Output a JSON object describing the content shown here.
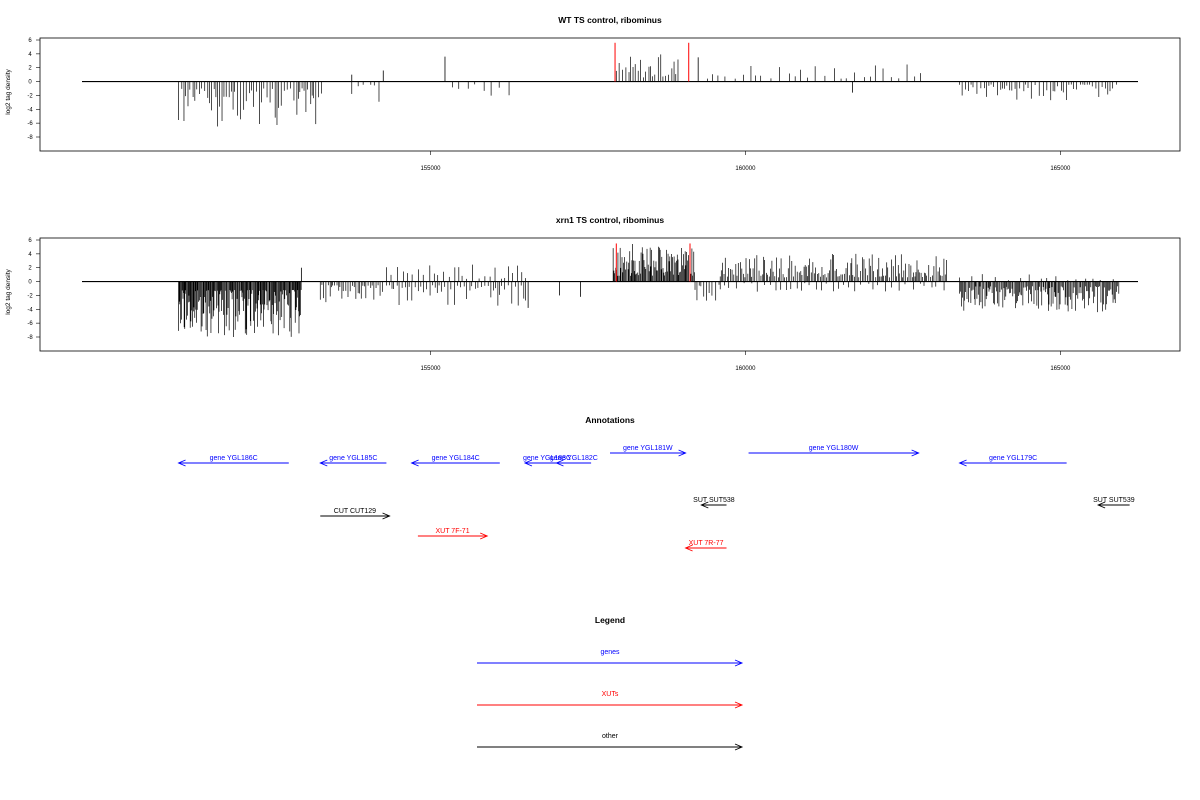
{
  "colors": {
    "blue": "#0000ff",
    "red": "#ff0000",
    "black": "#000000",
    "axis": "#333333"
  },
  "chart_data": [
    {
      "type": "bar",
      "title": "WT TS control, ribominus",
      "xlabel": "",
      "ylabel": "log2 tag density",
      "xlim": [
        148800,
        166900
      ],
      "ylim": [
        -8,
        6
      ],
      "yticks": [
        6,
        4,
        2,
        0,
        -2,
        -4,
        -6,
        -8
      ],
      "xticks": [
        155000,
        160000,
        165000
      ],
      "xtick_labels": [
        "155000",
        "160000",
        "165000"
      ],
      "signal_regions": [
        {
          "start": 151000,
          "end": 153300,
          "sign": -1,
          "max": 6.5,
          "step": 36
        },
        {
          "start": 153750,
          "end": 154250,
          "sign": -1,
          "max": 3.0,
          "step": 90
        },
        {
          "start": 155350,
          "end": 156300,
          "sign": -1,
          "max": 2.5,
          "step": 110
        },
        {
          "start": 157950,
          "end": 158950,
          "sign": 1,
          "max": 4.0,
          "step": 38
        },
        {
          "start": 159400,
          "end": 162800,
          "sign": 1,
          "max": 2.8,
          "step": 110
        },
        {
          "start": 163400,
          "end": 165900,
          "sign": -1,
          "max": 2.8,
          "step": 45
        }
      ],
      "spikes": [
        {
          "x": 154250,
          "y": 1.6
        },
        {
          "x": 155230,
          "y": 3.6
        },
        {
          "x": 153750,
          "y": 1.0
        },
        {
          "x": 161700,
          "y": -1.6
        },
        {
          "x": 159250,
          "y": 3.5
        }
      ],
      "red_spikes": [
        {
          "x": 157930,
          "y": 5.6
        },
        {
          "x": 159100,
          "y": 5.6
        }
      ]
    },
    {
      "type": "bar",
      "title": "xrn1 TS control, ribominus",
      "xlabel": "",
      "ylabel": "log2 tag density",
      "xlim": [
        148800,
        166900
      ],
      "ylim": [
        -8,
        6
      ],
      "yticks": [
        6,
        4,
        2,
        0,
        -2,
        -4,
        -6,
        -8
      ],
      "xticks": [
        155000,
        160000,
        165000
      ],
      "xtick_labels": [
        "155000",
        "160000",
        "165000"
      ],
      "signal_regions": [
        {
          "start": 151000,
          "end": 152950,
          "sign": -1,
          "max": 8.0,
          "step": 12
        },
        {
          "start": 153250,
          "end": 154250,
          "sign": -1,
          "max": 3.0,
          "step": 28
        },
        {
          "start": 154300,
          "end": 156550,
          "sign": -1,
          "max": 3.5,
          "step": 40
        },
        {
          "start": 154300,
          "end": 156550,
          "sign": 1,
          "max": 2.5,
          "step": 70
        },
        {
          "start": 157900,
          "end": 159200,
          "sign": 1,
          "max": 5.5,
          "step": 14
        },
        {
          "start": 159200,
          "end": 159600,
          "sign": -1,
          "max": 3.0,
          "step": 40
        },
        {
          "start": 159600,
          "end": 163200,
          "sign": 1,
          "max": 4.0,
          "step": 24
        },
        {
          "start": 159600,
          "end": 163200,
          "sign": -1,
          "max": 1.5,
          "step": 90
        },
        {
          "start": 163400,
          "end": 165950,
          "sign": -1,
          "max": 4.5,
          "step": 16
        },
        {
          "start": 163400,
          "end": 165950,
          "sign": 1,
          "max": 1.2,
          "step": 140
        }
      ],
      "spikes": [
        {
          "x": 152950,
          "y": 2.0
        },
        {
          "x": 156550,
          "y": -3.8
        },
        {
          "x": 157380,
          "y": -2.2
        },
        {
          "x": 157050,
          "y": -2.0
        }
      ],
      "red_spikes": [
        {
          "x": 157950,
          "y": 5.5
        },
        {
          "x": 159120,
          "y": 5.5
        }
      ]
    }
  ],
  "annotations": {
    "title": "Annotations",
    "items": [
      {
        "label": "gene YGL186C",
        "start": 151000,
        "end": 152750,
        "dir": "left",
        "row": 1,
        "color": "blue"
      },
      {
        "label": "gene YGL185C",
        "start": 153250,
        "end": 154300,
        "dir": "left",
        "row": 1,
        "color": "blue"
      },
      {
        "label": "gene YGL184C",
        "start": 154700,
        "end": 156100,
        "dir": "left",
        "row": 1,
        "color": "blue"
      },
      {
        "label": "gene YGL183C",
        "start": 156500,
        "end": 157200,
        "dir": "left",
        "row": 1,
        "color": "blue"
      },
      {
        "label": "gene YGL182C",
        "start": 157000,
        "end": 157550,
        "dir": "left",
        "row": 1,
        "color": "blue"
      },
      {
        "label": "gene YGL181W",
        "start": 157850,
        "end": 159050,
        "dir": "right",
        "row": 0,
        "color": "blue"
      },
      {
        "label": "gene YGL180W",
        "start": 160050,
        "end": 162750,
        "dir": "right",
        "row": 0,
        "color": "blue"
      },
      {
        "label": "gene YGL179C",
        "start": 163400,
        "end": 165100,
        "dir": "left",
        "row": 1,
        "color": "blue"
      },
      {
        "label": "SUT SUT538",
        "start": 159300,
        "end": 159700,
        "dir": "left",
        "row": 2,
        "color": "black"
      },
      {
        "label": "SUT SUT539",
        "start": 165600,
        "end": 166100,
        "dir": "left",
        "row": 2,
        "color": "black"
      },
      {
        "label": "CUT CUT129",
        "start": 153250,
        "end": 154350,
        "dir": "right",
        "row": 3,
        "color": "black"
      },
      {
        "label": "XUT 7F-71",
        "start": 154800,
        "end": 155900,
        "dir": "right",
        "row": 4,
        "color": "red"
      },
      {
        "label": "XUT 7R-77",
        "start": 159050,
        "end": 159700,
        "dir": "left",
        "row": 5,
        "color": "red"
      }
    ]
  },
  "legend": {
    "title": "Legend",
    "items": [
      {
        "label": "genes",
        "color": "blue"
      },
      {
        "label": "XUTs",
        "color": "red"
      },
      {
        "label": "other",
        "color": "black"
      }
    ]
  }
}
